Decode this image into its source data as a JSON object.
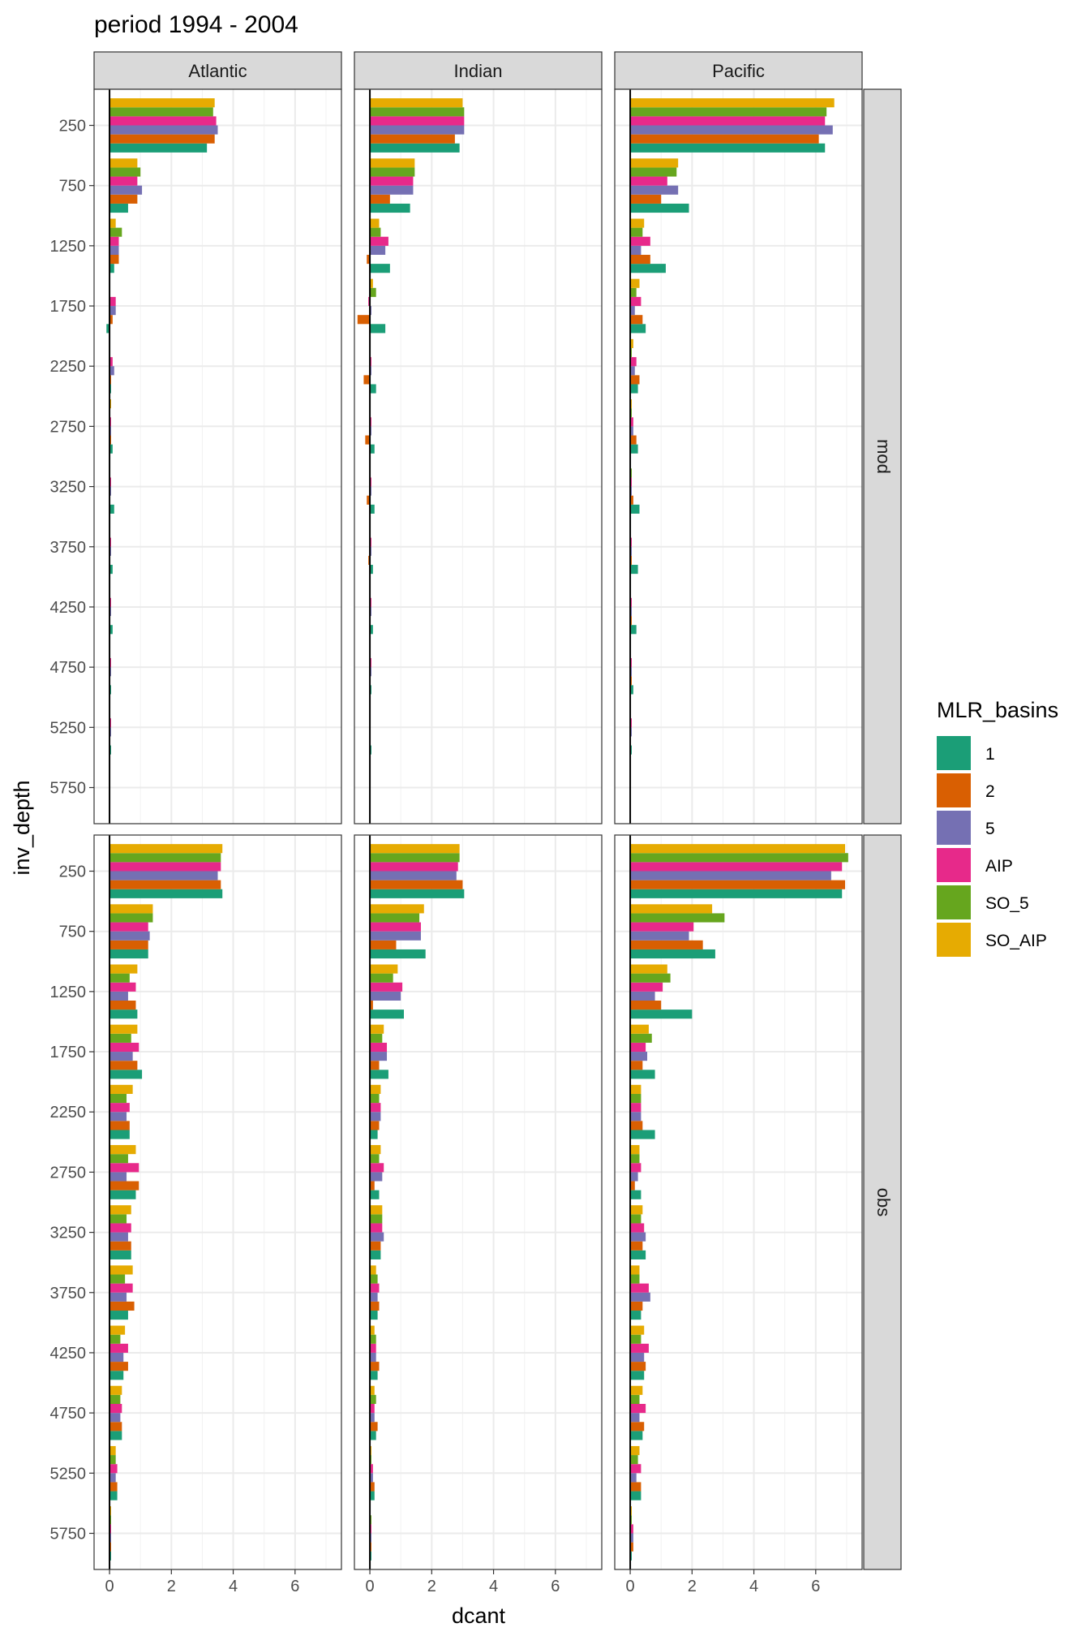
{
  "chart_data": {
    "type": "bar",
    "orientation": "horizontal",
    "title": "period 1994 - 2004",
    "xlabel": "dcant",
    "ylabel": "inv_depth",
    "xlim": [
      -0.5,
      7.5
    ],
    "xticks": [
      0,
      2,
      4,
      6
    ],
    "yticks": [
      250,
      750,
      1250,
      1750,
      2250,
      2750,
      3250,
      3750,
      4250,
      4750,
      5250,
      5750
    ],
    "grid": true,
    "legend": {
      "title": "MLR_basins",
      "position": "right"
    },
    "facet_cols": [
      "Atlantic",
      "Indian",
      "Pacific"
    ],
    "facet_rows": [
      "mod",
      "obs"
    ],
    "series": [
      {
        "name": "1",
        "color": "#1b9e77"
      },
      {
        "name": "2",
        "color": "#d95f02"
      },
      {
        "name": "5",
        "color": "#7570b3"
      },
      {
        "name": "AIP",
        "color": "#e7298a"
      },
      {
        "name": "SO_5",
        "color": "#66a61e"
      },
      {
        "name": "SO_AIP",
        "color": "#e6ab02"
      }
    ],
    "panels": {
      "mod": {
        "Atlantic": [
          [
            3.15,
            3.4,
            3.5,
            3.45,
            3.35,
            3.4
          ],
          [
            0.6,
            0.9,
            1.05,
            0.9,
            1.0,
            0.9
          ],
          [
            0.15,
            0.3,
            0.3,
            0.3,
            0.4,
            0.2
          ],
          [
            -0.1,
            0.1,
            0.2,
            0.2,
            0.0,
            0.0
          ],
          [
            0.05,
            0.05,
            0.15,
            0.1,
            0.0,
            0.0
          ],
          [
            0.1,
            0.05,
            0.05,
            0.05,
            0.0,
            0.05
          ],
          [
            0.15,
            0.0,
            0.05,
            0.05,
            0.0,
            0.0
          ],
          [
            0.1,
            0.0,
            0.05,
            0.05,
            0.0,
            0.0
          ],
          [
            0.1,
            0.0,
            0.05,
            0.05,
            0.0,
            0.0
          ],
          [
            0.05,
            0.0,
            0.05,
            0.05,
            0.0,
            0.0
          ],
          [
            0.05,
            0.0,
            0.05,
            0.05,
            0.0,
            0.0
          ],
          [
            0.0,
            0.0,
            0.0,
            0.0,
            0.0,
            0.0
          ]
        ],
        "Indian": [
          [
            2.9,
            2.75,
            3.05,
            3.05,
            3.05,
            3.0
          ],
          [
            1.3,
            0.65,
            1.4,
            1.4,
            1.45,
            1.45
          ],
          [
            0.65,
            -0.1,
            0.5,
            0.6,
            0.35,
            0.3
          ],
          [
            0.5,
            -0.4,
            0.05,
            -0.05,
            0.2,
            0.1
          ],
          [
            0.2,
            -0.2,
            0.05,
            0.05,
            0.0,
            0.0
          ],
          [
            0.15,
            -0.15,
            0.05,
            0.05,
            0.0,
            0.0
          ],
          [
            0.15,
            -0.1,
            0.05,
            0.05,
            0.0,
            0.0
          ],
          [
            0.1,
            -0.05,
            0.05,
            0.05,
            0.0,
            0.0
          ],
          [
            0.1,
            0.0,
            0.05,
            0.05,
            0.0,
            0.0
          ],
          [
            0.05,
            0.0,
            0.05,
            0.05,
            0.0,
            0.0
          ],
          [
            0.05,
            0.0,
            0.0,
            0.0,
            0.0,
            0.0
          ],
          [
            0.0,
            0.0,
            0.0,
            0.0,
            0.0,
            0.0
          ]
        ],
        "Pacific": [
          [
            6.3,
            6.1,
            6.55,
            6.3,
            6.35,
            6.6
          ],
          [
            1.9,
            1.0,
            1.55,
            1.2,
            1.5,
            1.55
          ],
          [
            1.15,
            0.65,
            0.35,
            0.65,
            0.4,
            0.45
          ],
          [
            0.5,
            0.4,
            0.15,
            0.35,
            0.2,
            0.3
          ],
          [
            0.25,
            0.3,
            0.15,
            0.2,
            0.05,
            0.1
          ],
          [
            0.25,
            0.2,
            0.1,
            0.1,
            0.05,
            0.05
          ],
          [
            0.3,
            0.1,
            0.05,
            0.05,
            0.05,
            0.0
          ],
          [
            0.25,
            0.05,
            0.05,
            0.05,
            0.0,
            0.0
          ],
          [
            0.2,
            0.05,
            0.05,
            0.05,
            0.0,
            0.0
          ],
          [
            0.1,
            0.05,
            0.05,
            0.05,
            0.0,
            0.0
          ],
          [
            0.05,
            0.0,
            0.05,
            0.05,
            0.0,
            0.0
          ],
          [
            0.0,
            0.0,
            0.0,
            0.0,
            0.0,
            0.0
          ]
        ]
      },
      "obs": {
        "Atlantic": [
          [
            3.65,
            3.6,
            3.5,
            3.6,
            3.6,
            3.65
          ],
          [
            1.25,
            1.25,
            1.3,
            1.25,
            1.4,
            1.4
          ],
          [
            0.9,
            0.85,
            0.6,
            0.85,
            0.65,
            0.9
          ],
          [
            1.05,
            0.9,
            0.75,
            0.95,
            0.7,
            0.9
          ],
          [
            0.65,
            0.65,
            0.55,
            0.65,
            0.55,
            0.75
          ],
          [
            0.85,
            0.95,
            0.55,
            0.95,
            0.6,
            0.85
          ],
          [
            0.7,
            0.7,
            0.6,
            0.7,
            0.55,
            0.7
          ],
          [
            0.6,
            0.8,
            0.55,
            0.75,
            0.5,
            0.75
          ],
          [
            0.45,
            0.6,
            0.45,
            0.6,
            0.35,
            0.5
          ],
          [
            0.4,
            0.4,
            0.35,
            0.4,
            0.35,
            0.4
          ],
          [
            0.25,
            0.25,
            0.2,
            0.25,
            0.2,
            0.2
          ],
          [
            0.05,
            0.05,
            0.05,
            0.05,
            0.05,
            0.05
          ]
        ],
        "Indian": [
          [
            3.05,
            3.0,
            2.8,
            2.85,
            2.9,
            2.9
          ],
          [
            1.8,
            0.85,
            1.65,
            1.65,
            1.6,
            1.75
          ],
          [
            1.1,
            0.1,
            1.0,
            1.05,
            0.75,
            0.9
          ],
          [
            0.6,
            0.3,
            0.55,
            0.55,
            0.4,
            0.45
          ],
          [
            0.25,
            0.3,
            0.35,
            0.35,
            0.3,
            0.35
          ],
          [
            0.3,
            0.15,
            0.4,
            0.45,
            0.3,
            0.35
          ],
          [
            0.35,
            0.35,
            0.45,
            0.4,
            0.4,
            0.4
          ],
          [
            0.25,
            0.3,
            0.25,
            0.3,
            0.25,
            0.2
          ],
          [
            0.25,
            0.3,
            0.2,
            0.2,
            0.2,
            0.15
          ],
          [
            0.2,
            0.25,
            0.15,
            0.15,
            0.2,
            0.15
          ],
          [
            0.15,
            0.15,
            0.1,
            0.1,
            0.05,
            0.05
          ],
          [
            0.05,
            0.05,
            0.05,
            0.05,
            0.05,
            0.0
          ]
        ],
        "Pacific": [
          [
            6.85,
            6.95,
            6.5,
            6.85,
            7.05,
            6.95
          ],
          [
            2.75,
            2.35,
            1.9,
            2.05,
            3.05,
            2.65
          ],
          [
            2.0,
            1.0,
            0.8,
            1.05,
            1.3,
            1.2
          ],
          [
            0.8,
            0.4,
            0.55,
            0.5,
            0.7,
            0.6
          ],
          [
            0.8,
            0.4,
            0.35,
            0.35,
            0.35,
            0.35
          ],
          [
            0.35,
            0.15,
            0.25,
            0.35,
            0.3,
            0.3
          ],
          [
            0.5,
            0.4,
            0.5,
            0.45,
            0.35,
            0.4
          ],
          [
            0.35,
            0.4,
            0.65,
            0.6,
            0.3,
            0.3
          ],
          [
            0.45,
            0.5,
            0.45,
            0.6,
            0.35,
            0.45
          ],
          [
            0.4,
            0.45,
            0.3,
            0.5,
            0.3,
            0.4
          ],
          [
            0.35,
            0.35,
            0.2,
            0.35,
            0.25,
            0.3
          ],
          [
            0.05,
            0.1,
            0.1,
            0.1,
            0.05,
            0.05
          ]
        ]
      }
    }
  }
}
